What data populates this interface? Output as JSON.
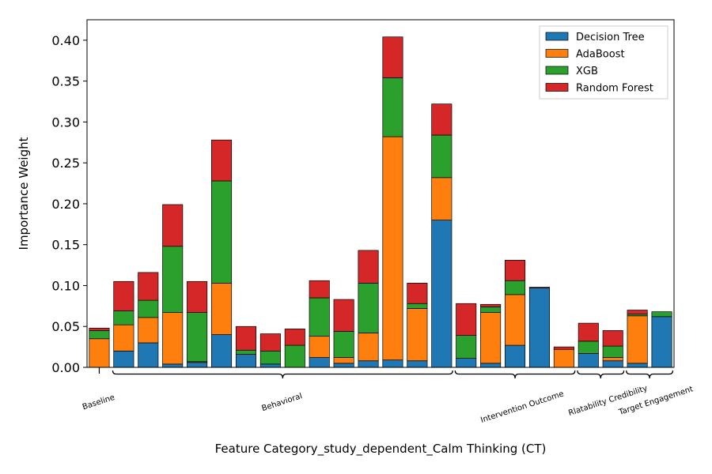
{
  "chart_data": {
    "type": "bar",
    "stacked": true,
    "xlabel": "Feature Category_study_dependent_Calm Thinking (CT)",
    "ylabel": "Importance Weight",
    "ylim": [
      0,
      0.425
    ],
    "yticks": [
      "0.00",
      "0.05",
      "0.10",
      "0.15",
      "0.20",
      "0.25",
      "0.30",
      "0.35",
      "0.40"
    ],
    "grid": false,
    "legend_position": "top-right",
    "series": [
      {
        "name": "Decision Tree",
        "color": "#1f77b4",
        "values": [
          0.0,
          0.02,
          0.03,
          0.004,
          0.006,
          0.04,
          0.016,
          0.004,
          0.0,
          0.012,
          0.005,
          0.008,
          0.009,
          0.008,
          0.18,
          0.011,
          0.005,
          0.027,
          0.097,
          0.0,
          0.017,
          0.008,
          0.005,
          0.062
        ]
      },
      {
        "name": "AdaBoost",
        "color": "#ff7f0e",
        "values": [
          0.035,
          0.032,
          0.031,
          0.063,
          0.001,
          0.063,
          0.0,
          0.0,
          0.0,
          0.026,
          0.007,
          0.034,
          0.273,
          0.064,
          0.052,
          0.0,
          0.062,
          0.062,
          0.0,
          0.022,
          0.0,
          0.004,
          0.058,
          0.0
        ]
      },
      {
        "name": "XGB",
        "color": "#2ca02c",
        "values": [
          0.01,
          0.017,
          0.021,
          0.081,
          0.06,
          0.125,
          0.005,
          0.016,
          0.027,
          0.047,
          0.032,
          0.061,
          0.072,
          0.006,
          0.052,
          0.028,
          0.007,
          0.017,
          0.0,
          0.0,
          0.015,
          0.014,
          0.002,
          0.006
        ]
      },
      {
        "name": "Random Forest",
        "color": "#d62728",
        "values": [
          0.003,
          0.036,
          0.034,
          0.051,
          0.038,
          0.05,
          0.029,
          0.021,
          0.02,
          0.021,
          0.039,
          0.04,
          0.05,
          0.025,
          0.038,
          0.039,
          0.003,
          0.025,
          0.001,
          0.003,
          0.022,
          0.019,
          0.005,
          0.0
        ]
      }
    ],
    "groups": [
      {
        "label": "Baseline",
        "start": 0,
        "end": 0
      },
      {
        "label": "Behavioral",
        "start": 1,
        "end": 14
      },
      {
        "label": "Intervention Outcome",
        "start": 15,
        "end": 19
      },
      {
        "label": "Rlatability Credibility",
        "start": 20,
        "end": 21
      },
      {
        "label": "Target Engagement",
        "start": 22,
        "end": 23
      }
    ]
  }
}
